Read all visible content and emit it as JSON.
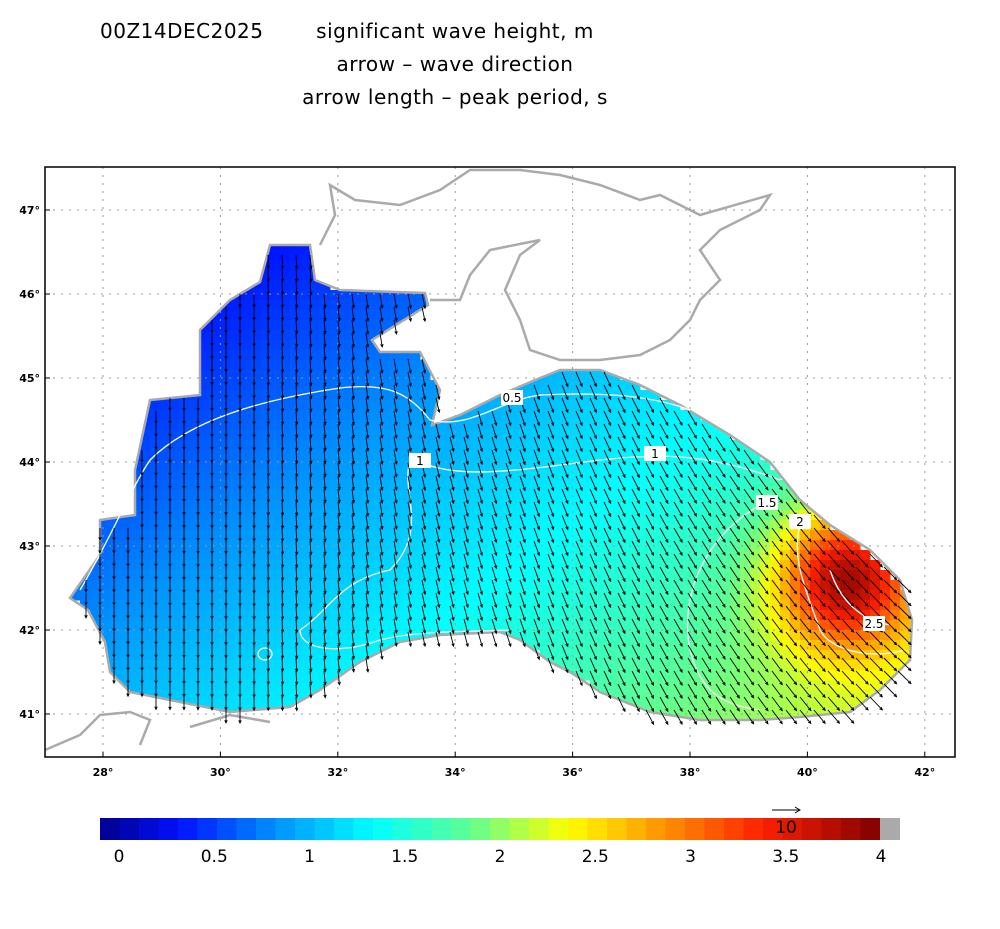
{
  "header": {
    "lines": [
      "00Z14DEC2025",
      "significant wave height, m",
      "arrow  –  wave direction",
      "arrow length –  peak period, s"
    ]
  },
  "map": {
    "lon_labels": [
      "28°",
      "30°",
      "32°",
      "34°",
      "36°",
      "38°",
      "40°",
      "42°"
    ],
    "lat_labels": [
      "41°",
      "42°",
      "43°",
      "44°",
      "45°",
      "46°",
      "47°"
    ],
    "contour_labels": [
      "0.5",
      "1",
      "1",
      "1.5",
      "2",
      "2.5"
    ]
  },
  "colorbar": {
    "labels": [
      "0",
      "0.5",
      "1",
      "1.5",
      "2",
      "2.5",
      "3",
      "3.5",
      "4"
    ],
    "reference_arrow": "10"
  }
}
